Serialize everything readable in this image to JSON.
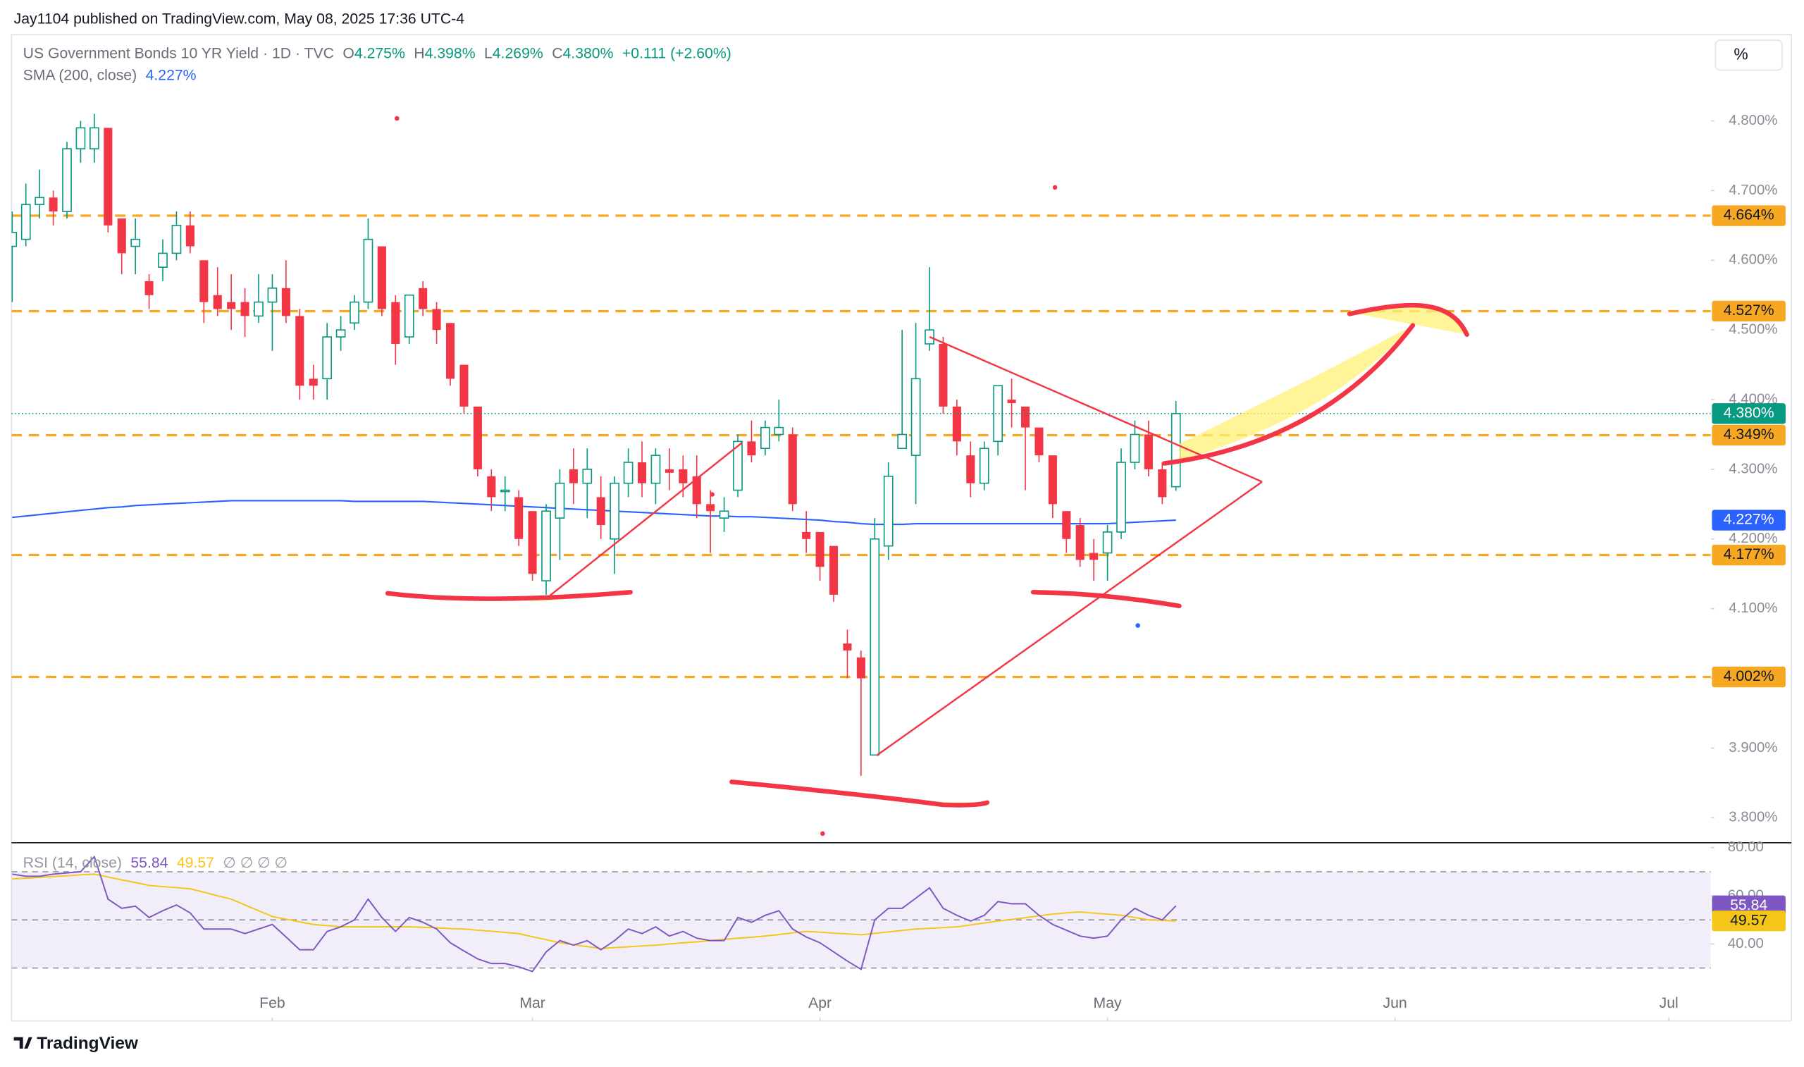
{
  "chart_data": {
    "type": "candlestick",
    "publisher": "Jay1104 published on TradingView.com, May 08, 2025 17:36 UTC-4",
    "title": "US Government Bonds 10 YR Yield · 1D · TVC",
    "ohlc_legend": [
      {
        "key": "O",
        "label": "4.275%"
      },
      {
        "key": "H",
        "label": "4.398%"
      },
      {
        "key": "L",
        "label": "4.269%"
      },
      {
        "key": "C",
        "label": "4.380%"
      }
    ],
    "change": "+0.111 (+2.60%)",
    "scale_button": "%",
    "brand": "TradingView",
    "colors": {
      "up": "#089981",
      "down": "#f23645",
      "level": "#f7a823",
      "last": "#089981"
    },
    "grid": false,
    "xlim": [
      0,
      124
    ],
    "xticks": [
      {
        "value": 19,
        "label": "Feb"
      },
      {
        "value": 38,
        "label": "Mar"
      },
      {
        "value": 59,
        "label": "Apr"
      },
      {
        "value": 80,
        "label": "May"
      },
      {
        "value": 101,
        "label": "Jun"
      },
      {
        "value": 121,
        "label": "Jul"
      }
    ],
    "ylim": [
      3.764,
      4.924
    ],
    "yticks": [
      {
        "value": 3.8,
        "label": "3.800%"
      },
      {
        "value": 3.9,
        "label": "3.900%"
      },
      {
        "value": 4.0,
        "label": "4.000%"
      },
      {
        "value": 4.1,
        "label": "4.100%"
      },
      {
        "value": 4.2,
        "label": "4.200%"
      },
      {
        "value": 4.3,
        "label": "4.300%"
      },
      {
        "value": 4.4,
        "label": "4.400%"
      },
      {
        "value": 4.5,
        "label": "4.500%"
      },
      {
        "value": 4.6,
        "label": "4.600%"
      },
      {
        "value": 4.7,
        "label": "4.700%"
      },
      {
        "value": 4.8,
        "label": "4.800%"
      }
    ],
    "open": [
      4.62,
      4.63,
      4.68,
      4.69,
      4.67,
      4.76,
      4.76,
      4.79,
      4.66,
      4.62,
      4.57,
      4.59,
      4.61,
      4.65,
      4.6,
      4.55,
      4.54,
      4.54,
      4.52,
      4.54,
      4.56,
      4.52,
      4.43,
      4.43,
      4.49,
      4.51,
      4.54,
      4.62,
      4.54,
      4.49,
      4.56,
      4.53,
      4.51,
      4.45,
      4.39,
      4.29,
      4.27,
      4.26,
      4.24,
      4.14,
      4.23,
      4.3,
      4.28,
      4.26,
      4.2,
      4.28,
      4.31,
      4.28,
      4.3,
      4.3,
      4.29,
      4.25,
      4.23,
      4.27,
      4.34,
      4.33,
      4.35,
      4.35,
      4.21,
      4.21,
      4.19,
      4.05,
      4.03,
      3.89,
      4.19,
      4.33,
      4.32,
      4.48,
      4.48,
      4.39,
      4.32,
      4.28,
      4.34,
      4.4,
      4.39,
      4.36,
      4.32,
      4.24,
      4.22,
      4.18,
      4.18,
      4.21,
      4.31,
      4.35,
      4.3,
      4.275
    ],
    "high": [
      4.67,
      4.71,
      4.73,
      4.7,
      4.77,
      4.8,
      4.81,
      4.79,
      4.66,
      4.66,
      4.58,
      4.63,
      4.67,
      4.67,
      4.6,
      4.59,
      4.58,
      4.56,
      4.58,
      4.58,
      4.6,
      4.53,
      4.45,
      4.51,
      4.52,
      4.55,
      4.66,
      4.62,
      4.55,
      4.55,
      4.57,
      4.54,
      4.51,
      4.45,
      4.39,
      4.3,
      4.29,
      4.27,
      4.24,
      4.25,
      4.3,
      4.33,
      4.33,
      4.29,
      4.29,
      4.33,
      4.34,
      4.33,
      4.33,
      4.32,
      4.32,
      4.27,
      4.26,
      4.35,
      4.37,
      4.37,
      4.4,
      4.36,
      4.24,
      4.21,
      4.19,
      4.07,
      4.04,
      4.23,
      4.31,
      4.5,
      4.51,
      4.59,
      4.49,
      4.4,
      4.34,
      4.34,
      4.42,
      4.43,
      4.39,
      4.36,
      4.32,
      4.24,
      4.23,
      4.2,
      4.22,
      4.33,
      4.37,
      4.37,
      4.31,
      4.398
    ],
    "low": [
      4.54,
      4.62,
      4.66,
      4.65,
      4.66,
      4.74,
      4.74,
      4.64,
      4.58,
      4.58,
      4.53,
      4.57,
      4.6,
      4.61,
      4.51,
      4.52,
      4.5,
      4.49,
      4.51,
      4.47,
      4.51,
      4.4,
      4.4,
      4.4,
      4.47,
      4.5,
      4.53,
      4.52,
      4.45,
      4.48,
      4.52,
      4.48,
      4.42,
      4.38,
      4.29,
      4.24,
      4.24,
      4.19,
      4.14,
      4.12,
      4.17,
      4.25,
      4.23,
      4.2,
      4.15,
      4.26,
      4.26,
      4.25,
      4.27,
      4.26,
      4.23,
      4.18,
      4.21,
      4.26,
      4.31,
      4.32,
      4.34,
      4.24,
      4.18,
      4.14,
      4.11,
      4.0,
      3.86,
      3.89,
      4.17,
      4.33,
      4.25,
      4.47,
      4.38,
      4.32,
      4.26,
      4.27,
      4.32,
      4.36,
      4.27,
      4.31,
      4.23,
      4.18,
      4.16,
      4.14,
      4.14,
      4.2,
      4.3,
      4.29,
      4.25,
      4.269
    ],
    "close": [
      4.64,
      4.68,
      4.69,
      4.67,
      4.76,
      4.79,
      4.79,
      4.65,
      4.61,
      4.63,
      4.55,
      4.61,
      4.65,
      4.62,
      4.54,
      4.53,
      4.53,
      4.52,
      4.54,
      4.56,
      4.52,
      4.42,
      4.42,
      4.49,
      4.5,
      4.54,
      4.63,
      4.53,
      4.48,
      4.55,
      4.53,
      4.5,
      4.43,
      4.39,
      4.3,
      4.26,
      4.27,
      4.2,
      4.15,
      4.24,
      4.28,
      4.28,
      4.3,
      4.22,
      4.28,
      4.31,
      4.28,
      4.32,
      4.295,
      4.28,
      4.25,
      4.24,
      4.24,
      4.34,
      4.32,
      4.36,
      4.36,
      4.25,
      4.2,
      4.16,
      4.12,
      4.04,
      4.0,
      4.2,
      4.29,
      4.35,
      4.43,
      4.5,
      4.39,
      4.34,
      4.28,
      4.33,
      4.42,
      4.395,
      4.36,
      4.32,
      4.25,
      4.2,
      4.17,
      4.17,
      4.21,
      4.31,
      4.35,
      4.3,
      4.26,
      4.38
    ],
    "levels": [
      {
        "value": 4.664,
        "label": "4.664%"
      },
      {
        "value": 4.527,
        "label": "4.527%"
      },
      {
        "value": 4.349,
        "label": "4.349%"
      },
      {
        "value": 4.177,
        "label": "4.177%"
      },
      {
        "value": 4.002,
        "label": "4.002%"
      }
    ],
    "sma": {
      "name": "SMA (200, close)",
      "label": "4.227%",
      "color": "#2962ff",
      "values": [
        4.231,
        4.233,
        4.235,
        4.237,
        4.239,
        4.241,
        4.243,
        4.245,
        4.246,
        4.248,
        4.249,
        4.25,
        4.251,
        4.252,
        4.253,
        4.254,
        4.255,
        4.255,
        4.255,
        4.255,
        4.255,
        4.255,
        4.255,
        4.255,
        4.255,
        4.254,
        4.254,
        4.254,
        4.254,
        4.254,
        4.254,
        4.253,
        4.252,
        4.251,
        4.25,
        4.249,
        4.248,
        4.247,
        4.246,
        4.245,
        4.244,
        4.243,
        4.242,
        4.241,
        4.24,
        4.239,
        4.238,
        4.237,
        4.236,
        4.235,
        4.234,
        4.233,
        4.233,
        4.232,
        4.232,
        4.231,
        4.23,
        4.229,
        4.228,
        4.227,
        4.225,
        4.224,
        4.222,
        4.221,
        4.221,
        4.221,
        4.222,
        4.222,
        4.222,
        4.222,
        4.222,
        4.222,
        4.222,
        4.222,
        4.222,
        4.222,
        4.222,
        4.222,
        4.222,
        4.222,
        4.222,
        4.223,
        4.224,
        4.225,
        4.226,
        4.227
      ]
    },
    "rsi": {
      "name": "RSI (14, close)",
      "color": "#7e57c2",
      "extra": "∅ ∅ ∅ ∅",
      "ylim": [
        19,
        82
      ],
      "yticks": [
        {
          "value": 80,
          "label": "80.00"
        },
        {
          "value": 60,
          "label": "60.00"
        },
        {
          "value": 40,
          "label": "40.00"
        }
      ],
      "bands": [
        70,
        50,
        30
      ],
      "values": [
        69.0,
        68.1,
        68.1,
        69.0,
        69.5,
        70.0,
        76.2,
        58.6,
        54.8,
        55.7,
        51.0,
        53.8,
        56.2,
        52.9,
        46.2,
        46.2,
        46.2,
        44.3,
        46.2,
        48.1,
        42.9,
        37.6,
        37.6,
        45.2,
        47.1,
        50.0,
        58.6,
        51.0,
        45.2,
        51.0,
        49.0,
        46.2,
        40.5,
        37.1,
        33.8,
        31.9,
        31.9,
        30.5,
        28.6,
        36.7,
        41.4,
        39.5,
        41.4,
        37.6,
        41.4,
        46.2,
        44.3,
        47.1,
        43.3,
        45.2,
        42.4,
        41.4,
        41.4,
        51.0,
        49.0,
        51.9,
        53.8,
        46.2,
        42.9,
        40.5,
        36.7,
        32.9,
        29.5,
        50.0,
        54.8,
        54.8,
        59.0,
        63.3,
        54.8,
        51.9,
        49.5,
        51.9,
        57.6,
        56.7,
        56.7,
        51.9,
        48.1,
        45.7,
        43.3,
        42.4,
        43.3,
        50.0,
        54.8,
        51.9,
        50.0,
        55.84
      ],
      "ma": {
        "color": "#f5c518",
        "values": [
          67.0,
          67.3,
          67.7,
          68.0,
          68.3,
          68.7,
          69.0,
          67.8,
          66.6,
          65.5,
          64.3,
          63.8,
          63.4,
          62.9,
          61.5,
          60.0,
          58.6,
          56.2,
          53.8,
          51.4,
          50.3,
          49.2,
          48.1,
          47.6,
          47.1,
          47.1,
          47.1,
          47.1,
          47.1,
          47.1,
          46.9,
          46.7,
          46.4,
          46.2,
          45.7,
          45.3,
          44.8,
          44.3,
          43.0,
          41.8,
          40.5,
          39.7,
          38.9,
          38.1,
          38.5,
          38.8,
          39.2,
          39.5,
          40.0,
          40.5,
          40.9,
          41.4,
          41.9,
          42.4,
          42.8,
          43.3,
          43.9,
          44.6,
          45.2,
          44.9,
          44.5,
          44.2,
          43.8,
          44.4,
          45.0,
          45.6,
          46.2,
          46.5,
          46.8,
          47.1,
          47.9,
          48.7,
          49.5,
          50.2,
          50.9,
          51.7,
          52.4,
          52.9,
          53.3,
          52.8,
          52.4,
          51.9,
          51.0,
          50.0,
          49.8,
          49.57
        ]
      }
    }
  }
}
